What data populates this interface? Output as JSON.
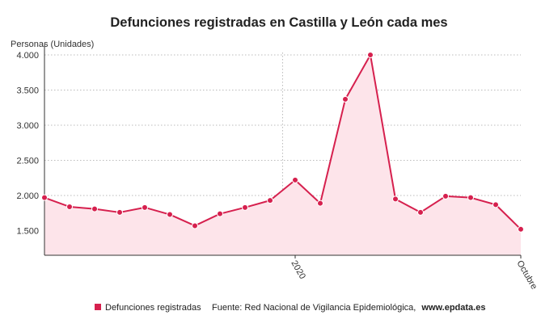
{
  "chart_data": {
    "type": "area",
    "title": "Defunciones registradas en Castilla y León cada mes",
    "ylabel": "Personas (Unidades)",
    "xlabel": "",
    "ylim": [
      1150,
      4150
    ],
    "yticks": [
      1500,
      2000,
      2500,
      3000,
      3500,
      4000
    ],
    "ytick_labels": [
      "1.500",
      "2.000",
      "2.500",
      "3.000",
      "3.500",
      "4.000"
    ],
    "x_tick_labels": [
      {
        "index": 10,
        "label": "2020"
      },
      {
        "index": 19,
        "label": "Octubre"
      }
    ],
    "vertical_reference_index": 9.5,
    "grid": "horizontal-dotted",
    "series": [
      {
        "name": "Defunciones registradas",
        "color": "#d6204e",
        "fill": "#fde4ea",
        "values": [
          1970,
          1840,
          1810,
          1760,
          1830,
          1730,
          1570,
          1740,
          1830,
          1930,
          2220,
          1890,
          3370,
          4000,
          1950,
          1760,
          1990,
          1970,
          1870,
          1520
        ]
      }
    ],
    "legend": {
      "position": "bottom-left",
      "label": "Defunciones registradas"
    },
    "source": {
      "prefix": "Fuente: Red Nacional de Vigilancia Epidemiológica,",
      "site": "www.epdata.es"
    }
  }
}
